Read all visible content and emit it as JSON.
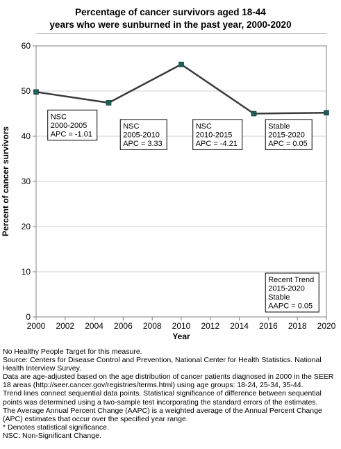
{
  "chart_data": {
    "type": "line",
    "title_lines": [
      "Percentage of cancer survivors aged 18-44",
      "years who were sunburned in the past year, 2000-2020"
    ],
    "xlabel": "Year",
    "ylabel": "Percent of cancer survivors",
    "xlim": [
      2000,
      2020
    ],
    "ylim": [
      0,
      60
    ],
    "x_ticks": [
      2000,
      2002,
      2004,
      2006,
      2008,
      2010,
      2012,
      2014,
      2016,
      2018,
      2020
    ],
    "y_ticks": [
      0,
      10,
      20,
      30,
      40,
      50,
      60
    ],
    "grid": "horizontal",
    "series": [
      {
        "x": [
          2000,
          2005,
          2010,
          2015,
          2020
        ],
        "y": [
          49.8,
          47.4,
          55.9,
          45.0,
          45.2
        ],
        "color": "#3a3a3a",
        "marker_color": "#1f5f5a"
      }
    ],
    "annotations": [
      {
        "anchor_x": 2000.8,
        "anchor_y": 45.8,
        "lines": [
          "NSC",
          "2000-2005",
          "APC = -1.01"
        ]
      },
      {
        "anchor_x": 2005.8,
        "anchor_y": 43.7,
        "lines": [
          "NSC",
          "2005-2010",
          "APC =  3.33"
        ]
      },
      {
        "anchor_x": 2010.8,
        "anchor_y": 43.7,
        "lines": [
          "NSC",
          "2010-2015",
          "APC = -4.21"
        ]
      },
      {
        "anchor_x": 2015.8,
        "anchor_y": 43.7,
        "lines": [
          "Stable",
          "2015-2020",
          "APC =  0.05"
        ]
      },
      {
        "anchor_x": 2015.8,
        "anchor_y": 9.7,
        "lines": [
          "Recent Trend",
          "2015-2020",
          "Stable",
          "AAPC =  0.05"
        ]
      }
    ]
  },
  "footnotes": [
    "No Healthy People Target for this measure.",
    "Source: Centers for Disease Control and Prevention, National Center for Health Statistics. National Health Interview Survey.",
    "Data are age-adjusted based on the age distribution of cancer patients diagnosed in 2000 in the SEER 18 areas (http://seer.cancer.gov/registries/terms.html) using age groups: 18-24, 25-34, 35-44.",
    "Trend lines connect sequential data points. Statistical significance of difference between sequential points was determined using a two-sample test incorporating the standard errors of the estimates.",
    "The Average Annual Percent Change (AAPC) is a weighted average of the Annual Percent Change (APC) estimates that occur over the specified year range.",
    "* Denotes statistical significance.",
    "NSC: Non-Significant Change."
  ]
}
